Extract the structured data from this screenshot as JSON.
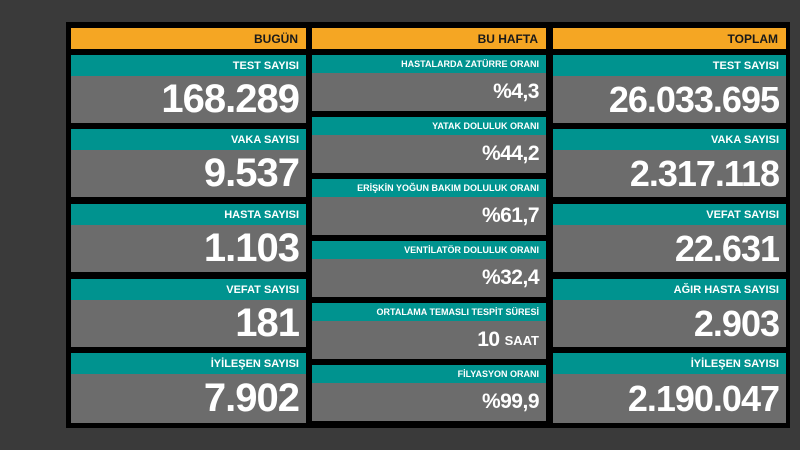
{
  "headers": {
    "today": "BUGÜN",
    "week": "BU HAFTA",
    "total": "TOPLAM"
  },
  "today": [
    {
      "label": "TEST SAYISI",
      "value": "168.289"
    },
    {
      "label": "VAKA SAYISI",
      "value": "9.537"
    },
    {
      "label": "HASTA SAYISI",
      "value": "1.103"
    },
    {
      "label": "VEFAT SAYISI",
      "value": "181"
    },
    {
      "label": "İYİLEŞEN SAYISI",
      "value": "7.902"
    }
  ],
  "week": [
    {
      "label": "HASTALARDA ZATÜRRE ORANI",
      "value": "%4,3"
    },
    {
      "label": "YATAK DOLULUK ORANI",
      "value": "%44,2"
    },
    {
      "label": "ERİŞKİN YOĞUN BAKIM DOLULUK ORANI",
      "value": "%61,7"
    },
    {
      "label": "VENTİLATÖR DOLULUK ORANI",
      "value": "%32,4"
    },
    {
      "label": "ORTALAMA TEMASLI TESPİT SÜRESİ",
      "value": "10",
      "unit": "SAAT"
    },
    {
      "label": "FİLYASYON ORANI",
      "value": "%99,9"
    }
  ],
  "total": [
    {
      "label": "TEST SAYISI",
      "value": "26.033.695"
    },
    {
      "label": "VAKA SAYISI",
      "value": "2.317.118"
    },
    {
      "label": "VEFAT SAYISI",
      "value": "22.631"
    },
    {
      "label": "AĞIR HASTA SAYISI",
      "value": "2.903"
    },
    {
      "label": "İYİLEŞEN SAYISI",
      "value": "2.190.047"
    }
  ]
}
